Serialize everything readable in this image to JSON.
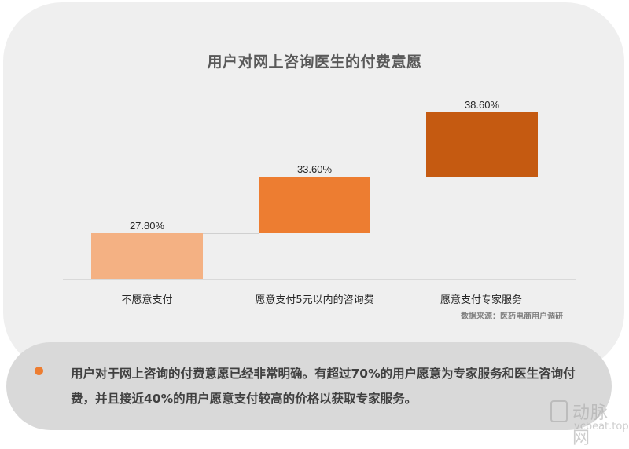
{
  "title": "用户对网上咨询医生的付费意愿",
  "source": "数据来源：医药电商用户调研",
  "note": {
    "bullet_color": "#ed7d31",
    "text": "用户对于网上咨询的付费意愿已经非常明确。有超过70%的用户愿意为专家服务和医生咨询付费，并且接近40%的用户愿意支付较高的价格以获取专家服务。"
  },
  "watermark": {
    "cn": "动脉网",
    "en": "vcbeat.top"
  },
  "chart_data": {
    "type": "bar",
    "subtype": "waterfall",
    "title": "用户对网上咨询医生的付费意愿",
    "categories": [
      "不愿意支付",
      "愿意支付5元以内的咨询费",
      "愿意支付专家服务"
    ],
    "values": [
      27.8,
      33.6,
      38.6
    ],
    "value_labels": [
      "27.80%",
      "33.60%",
      "38.60%"
    ],
    "colors": [
      "#f4b183",
      "#ed7d31",
      "#c55a11"
    ],
    "xlabel": "",
    "ylabel": "",
    "ylim": [
      0,
      100
    ],
    "grid": false,
    "legend": "none",
    "annotation": "数据来源：医药电商用户调研"
  }
}
